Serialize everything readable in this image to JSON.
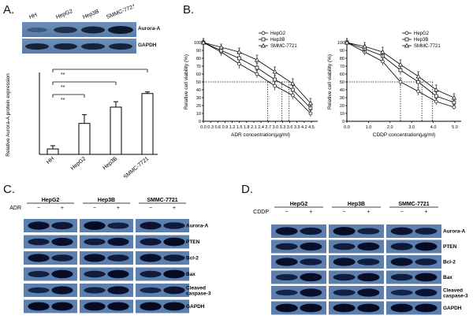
{
  "panels": {
    "A": {
      "letter": "A.",
      "blot_lanes": [
        "HH",
        "HepG2",
        "Hep3B",
        "SMMC-7721"
      ],
      "blot_rows": [
        "Aurora-A",
        "GAPDH"
      ],
      "chart_data": {
        "type": "bar",
        "categories": [
          "HH",
          "HepG2",
          "Hep3B",
          "SMMC-7721"
        ],
        "values": [
          0.1,
          0.57,
          0.87,
          1.12
        ],
        "errors": [
          0.06,
          0.16,
          0.1,
          0.03
        ],
        "ylabel": "Relative Aurora-A protein expression",
        "significance": [
          "**",
          "**",
          "**"
        ]
      }
    },
    "B": {
      "letter": "B.",
      "charts": [
        {
          "type": "line",
          "xlabel": "ADR concentration(μg/ml)",
          "ylabel": "Relative cell viability (%)",
          "xticks": [
            "0.0",
            "0.3",
            "0.6",
            "0.9",
            "1.2",
            "1.5",
            "1.8",
            "2.1",
            "2.4",
            "2.7",
            "3.0",
            "3.3",
            "3.6",
            "3.9",
            "4.2",
            "4.5"
          ],
          "yticks": [
            "0",
            "10",
            "20",
            "30",
            "40",
            "50",
            "60",
            "70",
            "80",
            "90",
            "100"
          ],
          "x": [
            0,
            0.5,
            1,
            1.5,
            2,
            2.5,
            3
          ],
          "xlim": [
            0,
            3.2
          ],
          "ylim": [
            0,
            100
          ],
          "reference_y": 50,
          "ic50": [
            1.8,
            2.2,
            2.4
          ],
          "series": [
            {
              "name": "HepG2",
              "marker": "circle",
              "values": [
                100,
                88,
                73,
                60,
                45,
                33,
                10
              ],
              "errors": [
                2,
                5,
                6,
                5,
                6,
                5,
                4
              ]
            },
            {
              "name": "Hep3B",
              "marker": "square",
              "values": [
                100,
                90,
                80,
                68,
                53,
                40,
                17
              ],
              "errors": [
                2,
                5,
                6,
                6,
                5,
                5,
                4
              ]
            },
            {
              "name": "SMMC-7721",
              "marker": "triangle",
              "values": [
                100,
                94,
                88,
                78,
                63,
                48,
                23
              ],
              "errors": [
                2,
                4,
                5,
                6,
                6,
                6,
                6
              ]
            }
          ]
        },
        {
          "type": "line",
          "xlabel": "CDDP concentration(μg/ml)",
          "ylabel": "Relative cell viability (%)",
          "xticks": [
            "0.0",
            "1.0",
            "2.0",
            "3.0",
            "4.0",
            "5.0"
          ],
          "yticks": [
            "0",
            "10",
            "20",
            "30",
            "40",
            "50",
            "60",
            "70",
            "80",
            "90",
            "100"
          ],
          "x": [
            0,
            0.5,
            1,
            1.5,
            2,
            2.5,
            3
          ],
          "xlim": [
            0,
            3.2
          ],
          "ylim": [
            0,
            100
          ],
          "reference_y": 50,
          "ic50": [
            1.5,
            2.1,
            2.4
          ],
          "series": [
            {
              "name": "HepG2",
              "marker": "circle",
              "values": [
                100,
                88,
                76,
                50,
                38,
                25,
                18
              ],
              "errors": [
                2,
                4,
                5,
                5,
                5,
                4,
                3
              ]
            },
            {
              "name": "Hep3B",
              "marker": "square",
              "values": [
                100,
                92,
                83,
                65,
                50,
                32,
                24
              ],
              "errors": [
                2,
                5,
                6,
                6,
                6,
                5,
                4
              ]
            },
            {
              "name": "SMMC-7721",
              "marker": "triangle",
              "values": [
                100,
                95,
                88,
                72,
                57,
                40,
                30
              ],
              "errors": [
                2,
                5,
                6,
                6,
                6,
                6,
                5
              ]
            }
          ]
        }
      ]
    },
    "C": {
      "letter": "C.",
      "treatment": "ADR",
      "groups": [
        "HepG2",
        "Hep3B",
        "SMMC-7721"
      ],
      "signs": [
        "−",
        "+"
      ],
      "rows": [
        "Aurora-A",
        "PTEN",
        "Bcl-2",
        "Bax",
        "Cleaved caspase-3",
        "GAPDH"
      ]
    },
    "D": {
      "letter": "D.",
      "treatment": "CDDP",
      "groups": [
        "HepG2",
        "Hep3B",
        "SMMC-7721"
      ],
      "signs": [
        "−",
        "+"
      ],
      "rows": [
        "Aurora-A",
        "PTEN",
        "Bcl-2",
        "Bax",
        "Cleaved caspase-3",
        "GAPDH"
      ]
    }
  }
}
